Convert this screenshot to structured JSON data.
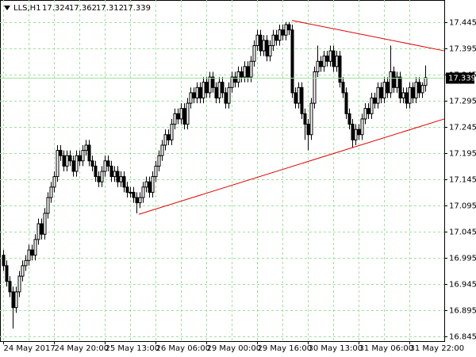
{
  "chart_data": {
    "type": "candlestick",
    "symbol": "LLS,H1",
    "ylim": [
      16.836,
      17.487
    ],
    "yticks": [
      17.445,
      17.395,
      17.345,
      17.295,
      17.245,
      17.195,
      17.145,
      17.095,
      17.045,
      16.995,
      16.945,
      16.895,
      16.845
    ],
    "grid": true,
    "grid_color": "#9ee09e",
    "up_color": "#ffffff",
    "down_color": "#000000",
    "line_color": "#000000",
    "trendline_color": "#e00000",
    "trendlines": [
      {
        "start": [
          42.75,
          17.078
        ],
        "end": [
          139,
          17.26
        ]
      },
      {
        "start": [
          91,
          17.448
        ],
        "end": [
          139,
          17.39
        ]
      }
    ],
    "categories": [
      "24 May 2017",
      null,
      null,
      null,
      null,
      null,
      null,
      null,
      null,
      null,
      null,
      null,
      null,
      null,
      null,
      null,
      "24 May 20:00",
      null,
      null,
      null,
      null,
      null,
      null,
      null,
      null,
      null,
      null,
      null,
      null,
      null,
      null,
      null,
      "25 May 13:00",
      null,
      null,
      null,
      null,
      null,
      null,
      null,
      null,
      null,
      null,
      null,
      null,
      null,
      null,
      null,
      "26 May 06:00",
      null,
      null,
      null,
      null,
      null,
      null,
      null,
      null,
      null,
      null,
      null,
      null,
      null,
      null,
      null,
      "29 May 00:00",
      null,
      null,
      null,
      null,
      null,
      null,
      null,
      null,
      null,
      null,
      null,
      null,
      null,
      null,
      null,
      "29 May 16:00",
      null,
      null,
      null,
      null,
      null,
      null,
      null,
      null,
      null,
      null,
      null,
      null,
      null,
      null,
      null,
      "30 May 13:00",
      null,
      null,
      null,
      null,
      null,
      null,
      null,
      null,
      null,
      null,
      null,
      null,
      null,
      null,
      null,
      "31 May 06:00",
      null,
      null,
      null,
      null,
      null,
      null,
      null,
      null,
      null,
      null,
      null,
      null,
      null,
      null,
      null,
      "31 May 22:00",
      null,
      null,
      null,
      null,
      null
    ],
    "candles": [
      [
        17.0,
        17.01,
        16.97,
        16.98
      ],
      [
        16.98,
        16.99,
        16.94,
        16.95
      ],
      [
        16.95,
        16.96,
        16.92,
        16.93
      ],
      [
        16.93,
        16.94,
        16.86,
        16.9
      ],
      [
        16.9,
        16.94,
        16.89,
        16.93
      ],
      [
        16.93,
        16.97,
        16.92,
        16.96
      ],
      [
        16.96,
        16.99,
        16.95,
        16.98
      ],
      [
        16.98,
        17.0,
        16.97,
        16.99
      ],
      [
        16.99,
        17.02,
        16.98,
        17.01
      ],
      [
        17.01,
        17.02,
        16.99,
        17.0
      ],
      [
        17.0,
        17.04,
        16.99,
        17.03
      ],
      [
        17.03,
        17.07,
        17.02,
        17.06
      ],
      [
        17.06,
        17.07,
        17.03,
        17.04
      ],
      [
        17.04,
        17.09,
        17.03,
        17.08
      ],
      [
        17.08,
        17.12,
        17.07,
        17.11
      ],
      [
        17.11,
        17.14,
        17.1,
        17.13
      ],
      [
        17.13,
        17.16,
        17.12,
        17.15
      ],
      [
        17.15,
        17.21,
        17.14,
        17.2
      ],
      [
        17.2,
        17.21,
        17.18,
        17.19
      ],
      [
        17.19,
        17.2,
        17.16,
        17.17
      ],
      [
        17.17,
        17.2,
        17.16,
        17.19
      ],
      [
        17.19,
        17.2,
        17.17,
        17.18
      ],
      [
        17.18,
        17.19,
        17.15,
        17.16
      ],
      [
        17.16,
        17.2,
        17.15,
        17.19
      ],
      [
        17.19,
        17.2,
        17.17,
        17.18
      ],
      [
        17.18,
        17.21,
        17.17,
        17.2
      ],
      [
        17.2,
        17.22,
        17.19,
        17.21
      ],
      [
        17.21,
        17.22,
        17.17,
        17.18
      ],
      [
        17.18,
        17.19,
        17.16,
        17.17
      ],
      [
        17.17,
        17.18,
        17.14,
        17.15
      ],
      [
        17.15,
        17.16,
        17.13,
        17.14
      ],
      [
        17.14,
        17.17,
        17.13,
        17.16
      ],
      [
        17.16,
        17.19,
        17.15,
        17.18
      ],
      [
        17.18,
        17.19,
        17.16,
        17.17
      ],
      [
        17.17,
        17.18,
        17.14,
        17.15
      ],
      [
        17.15,
        17.17,
        17.14,
        17.16
      ],
      [
        17.16,
        17.17,
        17.13,
        17.14
      ],
      [
        17.14,
        17.16,
        17.13,
        17.15
      ],
      [
        17.15,
        17.16,
        17.12,
        17.13
      ],
      [
        17.13,
        17.14,
        17.11,
        17.12
      ],
      [
        17.12,
        17.13,
        17.11,
        17.12
      ],
      [
        17.12,
        17.13,
        17.1,
        17.11
      ],
      [
        17.11,
        17.12,
        17.08,
        17.1
      ],
      [
        17.1,
        17.12,
        17.09,
        17.11
      ],
      [
        17.11,
        17.14,
        17.1,
        17.13
      ],
      [
        17.13,
        17.15,
        17.12,
        17.14
      ],
      [
        17.14,
        17.15,
        17.11,
        17.12
      ],
      [
        17.12,
        17.16,
        17.11,
        17.15
      ],
      [
        17.15,
        17.18,
        17.14,
        17.17
      ],
      [
        17.17,
        17.2,
        17.16,
        17.19
      ],
      [
        17.19,
        17.22,
        17.18,
        17.21
      ],
      [
        17.21,
        17.24,
        17.2,
        17.23
      ],
      [
        17.23,
        17.24,
        17.21,
        17.22
      ],
      [
        17.22,
        17.26,
        17.21,
        17.25
      ],
      [
        17.25,
        17.28,
        17.24,
        17.27
      ],
      [
        17.27,
        17.28,
        17.25,
        17.26
      ],
      [
        17.26,
        17.29,
        17.25,
        17.28
      ],
      [
        17.28,
        17.29,
        17.24,
        17.25
      ],
      [
        17.25,
        17.3,
        17.24,
        17.29
      ],
      [
        17.29,
        17.32,
        17.28,
        17.31
      ],
      [
        17.31,
        17.32,
        17.29,
        17.3
      ],
      [
        17.3,
        17.33,
        17.29,
        17.32
      ],
      [
        17.32,
        17.33,
        17.29,
        17.3
      ],
      [
        17.3,
        17.34,
        17.29,
        17.33
      ],
      [
        17.33,
        17.34,
        17.3,
        17.31
      ],
      [
        17.31,
        17.35,
        17.3,
        17.34
      ],
      [
        17.34,
        17.35,
        17.31,
        17.32
      ],
      [
        17.32,
        17.33,
        17.29,
        17.3
      ],
      [
        17.3,
        17.34,
        17.29,
        17.33
      ],
      [
        17.33,
        17.34,
        17.3,
        17.31
      ],
      [
        17.31,
        17.32,
        17.28,
        17.29
      ],
      [
        17.29,
        17.33,
        17.28,
        17.32
      ],
      [
        17.32,
        17.35,
        17.31,
        17.34
      ],
      [
        17.34,
        17.35,
        17.32,
        17.33
      ],
      [
        17.33,
        17.36,
        17.32,
        17.35
      ],
      [
        17.35,
        17.36,
        17.33,
        17.34
      ],
      [
        17.34,
        17.37,
        17.33,
        17.36
      ],
      [
        17.36,
        17.37,
        17.33,
        17.34
      ],
      [
        17.34,
        17.38,
        17.33,
        17.37
      ],
      [
        17.37,
        17.41,
        17.36,
        17.4
      ],
      [
        17.4,
        17.43,
        17.39,
        17.42
      ],
      [
        17.42,
        17.43,
        17.38,
        17.39
      ],
      [
        17.39,
        17.42,
        17.38,
        17.41
      ],
      [
        17.41,
        17.42,
        17.37,
        17.38
      ],
      [
        17.38,
        17.41,
        17.37,
        17.4
      ],
      [
        17.4,
        17.43,
        17.39,
        17.42
      ],
      [
        17.42,
        17.43,
        17.4,
        17.41
      ],
      [
        17.41,
        17.44,
        17.4,
        17.43
      ],
      [
        17.43,
        17.44,
        17.41,
        17.42
      ],
      [
        17.42,
        17.445,
        17.41,
        17.44
      ],
      [
        17.44,
        17.445,
        17.42,
        17.43
      ],
      [
        17.43,
        17.44,
        17.3,
        17.31
      ],
      [
        17.31,
        17.32,
        17.28,
        17.29
      ],
      [
        17.29,
        17.33,
        17.28,
        17.32
      ],
      [
        17.32,
        17.33,
        17.26,
        17.27
      ],
      [
        17.27,
        17.28,
        17.22,
        17.25
      ],
      [
        17.25,
        17.26,
        17.2,
        17.23
      ],
      [
        17.23,
        17.3,
        17.22,
        17.29
      ],
      [
        17.29,
        17.36,
        17.28,
        17.35
      ],
      [
        17.35,
        17.4,
        17.34,
        17.37
      ],
      [
        17.37,
        17.38,
        17.35,
        17.36
      ],
      [
        17.36,
        17.39,
        17.35,
        17.38
      ],
      [
        17.38,
        17.39,
        17.36,
        17.37
      ],
      [
        17.37,
        17.4,
        17.36,
        17.39
      ],
      [
        17.39,
        17.4,
        17.35,
        17.36
      ],
      [
        17.36,
        17.39,
        17.35,
        17.38
      ],
      [
        17.38,
        17.39,
        17.32,
        17.33
      ],
      [
        17.33,
        17.34,
        17.3,
        17.31
      ],
      [
        17.31,
        17.32,
        17.26,
        17.27
      ],
      [
        17.27,
        17.28,
        17.24,
        17.25
      ],
      [
        17.25,
        17.26,
        17.205,
        17.22
      ],
      [
        17.22,
        17.25,
        17.21,
        17.24
      ],
      [
        17.24,
        17.25,
        17.22,
        17.23
      ],
      [
        17.23,
        17.27,
        17.22,
        17.26
      ],
      [
        17.26,
        17.29,
        17.25,
        17.28
      ],
      [
        17.28,
        17.29,
        17.26,
        17.27
      ],
      [
        17.27,
        17.31,
        17.26,
        17.3
      ],
      [
        17.3,
        17.31,
        17.28,
        17.29
      ],
      [
        17.29,
        17.33,
        17.28,
        17.32
      ],
      [
        17.32,
        17.33,
        17.29,
        17.3
      ],
      [
        17.3,
        17.34,
        17.29,
        17.33
      ],
      [
        17.33,
        17.34,
        17.3,
        17.31
      ],
      [
        17.31,
        17.4,
        17.3,
        17.35
      ],
      [
        17.35,
        17.36,
        17.31,
        17.32
      ],
      [
        17.32,
        17.35,
        17.31,
        17.34
      ],
      [
        17.34,
        17.35,
        17.29,
        17.3
      ],
      [
        17.3,
        17.32,
        17.29,
        17.31
      ],
      [
        17.31,
        17.32,
        17.28,
        17.29
      ],
      [
        17.29,
        17.33,
        17.28,
        17.32
      ],
      [
        17.32,
        17.33,
        17.29,
        17.3
      ],
      [
        17.3,
        17.34,
        17.29,
        17.33
      ],
      [
        17.33,
        17.34,
        17.3,
        17.31
      ],
      [
        17.31,
        17.33,
        17.3,
        17.324
      ],
      [
        17.324,
        17.362,
        17.312,
        17.339
      ]
    ]
  }
}
